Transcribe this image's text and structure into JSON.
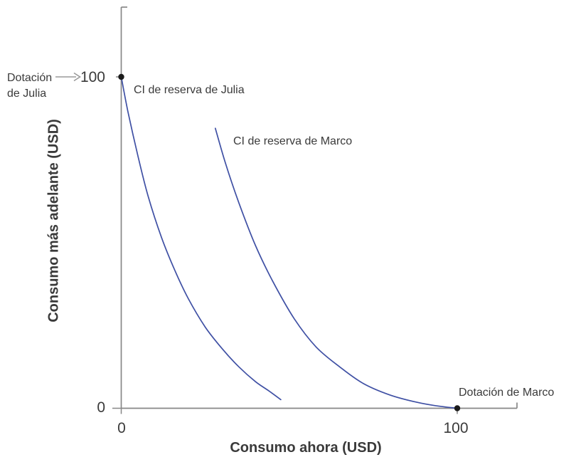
{
  "chart_data": {
    "type": "line",
    "title": "",
    "xlabel": "Consumo ahora (USD)",
    "ylabel": "Consumo más adelante (USD)",
    "xlim": [
      0,
      118
    ],
    "ylim": [
      0,
      121
    ],
    "grid": false,
    "x_tick_values": [
      0,
      100
    ],
    "x_tick_labels": [
      "0",
      "100"
    ],
    "y_tick_values": [
      0,
      100
    ],
    "y_tick_labels": [
      "0",
      "100"
    ],
    "axis_color": "#878787",
    "series": [
      {
        "name": "CI de reserva de Julia",
        "color": "#3f50a4",
        "points": [
          [
            0,
            100
          ],
          [
            2,
            89.5
          ],
          [
            5,
            76
          ],
          [
            8,
            64
          ],
          [
            12,
            51.5
          ],
          [
            16,
            41.5
          ],
          [
            20,
            33
          ],
          [
            25,
            24.5
          ],
          [
            30,
            18
          ],
          [
            35,
            12.5
          ],
          [
            40,
            8
          ],
          [
            44,
            5.2
          ],
          [
            47.5,
            2.6
          ]
        ]
      },
      {
        "name": "CI de reserva de Marco",
        "color": "#3f50a4",
        "points": [
          [
            28,
            84.5
          ],
          [
            31,
            74
          ],
          [
            35,
            62
          ],
          [
            40,
            49
          ],
          [
            45,
            38.5
          ],
          [
            51.5,
            27
          ],
          [
            58,
            18.5
          ],
          [
            65,
            12.5
          ],
          [
            72,
            7.5
          ],
          [
            80,
            4
          ],
          [
            88,
            1.8
          ],
          [
            94,
            0.7
          ],
          [
            100,
            0
          ]
        ]
      }
    ],
    "points": [
      {
        "x": 0,
        "y": 100,
        "label_lines": [
          "Dotación",
          "de Julia"
        ],
        "dot_color": "#1a1a1a"
      },
      {
        "x": 100,
        "y": 0,
        "label": "Dotación de Marco",
        "dot_color": "#1a1a1a"
      }
    ]
  },
  "arrow_color": "#9a9a9a"
}
